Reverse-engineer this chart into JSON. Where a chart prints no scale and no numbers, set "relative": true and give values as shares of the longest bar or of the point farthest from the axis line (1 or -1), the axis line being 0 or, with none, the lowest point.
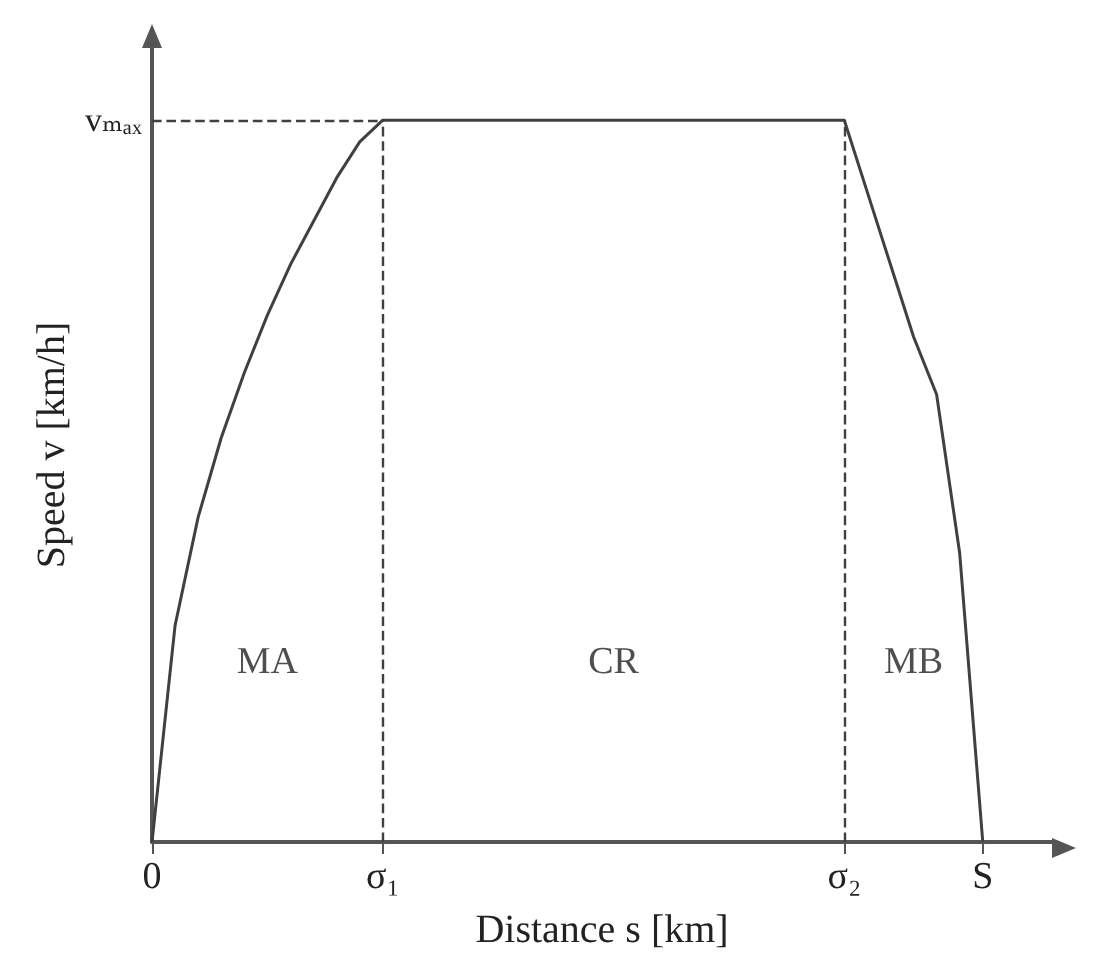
{
  "chart_data": {
    "type": "line",
    "relative": true,
    "xlabel": "Distance s [km]",
    "ylabel": "Speed v [km/h]",
    "categories": [
      "0",
      null,
      null,
      null,
      null,
      null,
      null,
      null,
      null,
      null,
      "σ₁",
      null,
      null,
      null,
      null,
      null,
      null,
      null,
      null,
      null,
      null,
      null,
      null,
      null,
      null,
      null,
      null,
      null,
      null,
      null,
      "σ₂",
      null,
      null,
      null,
      null,
      null,
      "S",
      null,
      null,
      null
    ],
    "series": [
      {
        "color": "#404040",
        "values": [
          0,
          0.3,
          0.45,
          0.56,
          0.65,
          0.73,
          0.8,
          0.86,
          0.92,
          0.97,
          1,
          1,
          1,
          1,
          1,
          1,
          1,
          1,
          1,
          1,
          1,
          1,
          1,
          1,
          1,
          1,
          1,
          1,
          1,
          1,
          1,
          0.9,
          0.8,
          0.7,
          0.62,
          0.4,
          0,
          null,
          null,
          null
        ]
      }
    ],
    "ref_lines": [
      {
        "axis": "y",
        "value": 1,
        "label": "vₘₐₓ",
        "line_style": "dashed",
        "color": "#404040"
      },
      {
        "axis": "x",
        "value": "σ₁",
        "line_style": "dashed",
        "color": "#404040"
      },
      {
        "axis": "x",
        "value": "σ₂",
        "line_style": "dashed",
        "color": "#404040"
      }
    ],
    "annotations": [
      "MA",
      "CR",
      "MB"
    ],
    "marker": "none",
    "line_style": "solid"
  }
}
